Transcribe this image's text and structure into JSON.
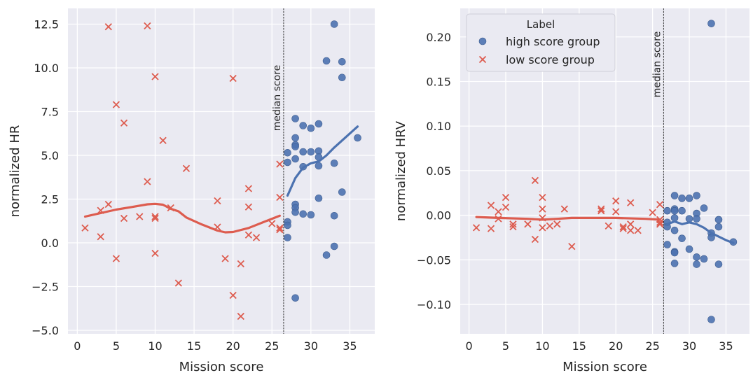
{
  "chart_data": [
    {
      "type": "scatter",
      "xlabel": "Mission score",
      "ylabel": "normalized HR",
      "xlim": [
        -1.2,
        38.2
      ],
      "ylim": [
        -5.2,
        13.4
      ],
      "xticks": [
        0,
        5,
        10,
        15,
        20,
        25,
        30,
        35
      ],
      "xtick_labels": [
        "0",
        "5",
        "10",
        "15",
        "20",
        "25",
        "30",
        "35"
      ],
      "yticks": [
        -5.0,
        -2.5,
        0.0,
        2.5,
        5.0,
        7.5,
        10.0,
        12.5
      ],
      "ytick_labels": [
        "−5.0",
        "−2.5",
        "0.0",
        "2.5",
        "5.0",
        "7.5",
        "10.0",
        "12.5"
      ],
      "grid": true,
      "median_line": {
        "x": 26.5,
        "label": "median score"
      },
      "series": [
        {
          "name": "high score group",
          "marker": "circle",
          "color": "#4c72b0",
          "points": [
            [
              27,
              5.15
            ],
            [
              27,
              4.6
            ],
            [
              27,
              1.2
            ],
            [
              27,
              1.0
            ],
            [
              27,
              0.3
            ],
            [
              28,
              7.1
            ],
            [
              28,
              6.0
            ],
            [
              28,
              5.6
            ],
            [
              28,
              5.5
            ],
            [
              28,
              4.8
            ],
            [
              28,
              2.2
            ],
            [
              28,
              2.0
            ],
            [
              28,
              1.75
            ],
            [
              28,
              -3.15
            ],
            [
              29,
              6.7
            ],
            [
              29,
              5.2
            ],
            [
              29,
              4.35
            ],
            [
              29,
              1.65
            ],
            [
              30,
              6.55
            ],
            [
              30,
              5.2
            ],
            [
              30,
              1.6
            ],
            [
              31,
              6.8
            ],
            [
              31,
              5.25
            ],
            [
              31,
              4.9
            ],
            [
              31,
              4.4
            ],
            [
              31,
              2.55
            ],
            [
              32,
              10.4
            ],
            [
              32,
              -0.7
            ],
            [
              33,
              12.5
            ],
            [
              33,
              4.55
            ],
            [
              33,
              1.55
            ],
            [
              33,
              -0.2
            ],
            [
              34,
              10.35
            ],
            [
              34,
              9.45
            ],
            [
              34,
              2.9
            ],
            [
              36,
              6.0
            ]
          ],
          "trend": [
            [
              27,
              2.7
            ],
            [
              28,
              3.7
            ],
            [
              29,
              4.3
            ],
            [
              30,
              4.55
            ],
            [
              31,
              4.65
            ],
            [
              32,
              5.0
            ],
            [
              33,
              5.45
            ],
            [
              34,
              5.85
            ],
            [
              35,
              6.25
            ],
            [
              36,
              6.65
            ]
          ]
        },
        {
          "name": "low score group",
          "marker": "x",
          "color": "#dd5c4f",
          "points": [
            [
              1,
              0.85
            ],
            [
              3,
              1.85
            ],
            [
              3,
              0.35
            ],
            [
              4,
              12.35
            ],
            [
              4,
              2.2
            ],
            [
              5,
              7.9
            ],
            [
              5,
              -0.9
            ],
            [
              6,
              6.85
            ],
            [
              6,
              1.4
            ],
            [
              8,
              1.5
            ],
            [
              9,
              12.4
            ],
            [
              9,
              3.5
            ],
            [
              10,
              9.5
            ],
            [
              10,
              1.5
            ],
            [
              10,
              1.4
            ],
            [
              10,
              -0.6
            ],
            [
              11,
              5.85
            ],
            [
              12,
              2.0
            ],
            [
              13,
              -2.3
            ],
            [
              14,
              4.25
            ],
            [
              18,
              2.4
            ],
            [
              18,
              0.9
            ],
            [
              19,
              -0.9
            ],
            [
              20,
              9.4
            ],
            [
              20,
              -3.0
            ],
            [
              21,
              -1.2
            ],
            [
              21,
              -4.2
            ],
            [
              22,
              3.1
            ],
            [
              22,
              2.05
            ],
            [
              22,
              0.45
            ],
            [
              23,
              0.3
            ],
            [
              25,
              1.1
            ],
            [
              26,
              4.5
            ],
            [
              26,
              2.6
            ],
            [
              26,
              0.85
            ],
            [
              26,
              0.75
            ]
          ],
          "trend": [
            [
              1,
              1.5
            ],
            [
              3,
              1.7
            ],
            [
              5,
              1.9
            ],
            [
              7,
              2.05
            ],
            [
              9,
              2.2
            ],
            [
              10,
              2.23
            ],
            [
              11,
              2.18
            ],
            [
              12,
              1.95
            ],
            [
              13,
              1.8
            ],
            [
              14,
              1.45
            ],
            [
              16,
              1.05
            ],
            [
              18,
              0.7
            ],
            [
              19,
              0.6
            ],
            [
              20,
              0.62
            ],
            [
              22,
              0.85
            ],
            [
              24,
              1.2
            ],
            [
              26,
              1.55
            ]
          ]
        }
      ]
    },
    {
      "type": "scatter",
      "xlabel": "Mission score",
      "ylabel": "normalized HRV",
      "xlim": [
        -1.2,
        38.2
      ],
      "ylim": [
        -0.133,
        0.232
      ],
      "xticks": [
        0,
        5,
        10,
        15,
        20,
        25,
        30,
        35
      ],
      "xtick_labels": [
        "0",
        "5",
        "10",
        "15",
        "20",
        "25",
        "30",
        "35"
      ],
      "yticks": [
        -0.1,
        -0.05,
        0.0,
        0.05,
        0.1,
        0.15,
        0.2
      ],
      "ytick_labels": [
        "−0.10",
        "−0.05",
        "0.00",
        "0.05",
        "0.10",
        "0.15",
        "0.20"
      ],
      "grid": true,
      "median_line": {
        "x": 26.5,
        "label": "median score"
      },
      "legend": {
        "title": "Label",
        "placement": "upper-left",
        "entries": [
          "high score group",
          "low score group"
        ]
      },
      "series": [
        {
          "name": "high score group",
          "marker": "circle",
          "color": "#4c72b0",
          "points": [
            [
              27,
              0.005
            ],
            [
              27,
              -0.008
            ],
            [
              27,
              -0.013
            ],
            [
              27,
              -0.033
            ],
            [
              28,
              0.022
            ],
            [
              28,
              0.007
            ],
            [
              28,
              0.005
            ],
            [
              28,
              -0.003
            ],
            [
              28,
              -0.017
            ],
            [
              28,
              -0.041
            ],
            [
              28,
              -0.042
            ],
            [
              28,
              -0.054
            ],
            [
              29,
              0.019
            ],
            [
              29,
              0.005
            ],
            [
              29,
              -0.026
            ],
            [
              30,
              0.019
            ],
            [
              30,
              -0.004
            ],
            [
              30,
              -0.038
            ],
            [
              31,
              0.022
            ],
            [
              31,
              0.002
            ],
            [
              31,
              -0.004
            ],
            [
              31,
              -0.047
            ],
            [
              31,
              -0.055
            ],
            [
              32,
              0.008
            ],
            [
              32,
              -0.049
            ],
            [
              33,
              0.215
            ],
            [
              33,
              -0.02
            ],
            [
              33,
              -0.025
            ],
            [
              33,
              -0.117
            ],
            [
              34,
              -0.005
            ],
            [
              34,
              -0.013
            ],
            [
              34,
              -0.055
            ],
            [
              36,
              -0.03
            ]
          ],
          "trend": [
            [
              27,
              -0.01
            ],
            [
              28,
              -0.007
            ],
            [
              29,
              -0.01
            ],
            [
              30,
              -0.008
            ],
            [
              31,
              -0.01
            ],
            [
              32,
              -0.014
            ],
            [
              33,
              -0.02
            ],
            [
              34,
              -0.024
            ],
            [
              35,
              -0.028
            ],
            [
              36,
              -0.031
            ]
          ]
        },
        {
          "name": "low score group",
          "marker": "x",
          "color": "#dd5c4f",
          "points": [
            [
              1,
              -0.014
            ],
            [
              3,
              0.011
            ],
            [
              3,
              -0.015
            ],
            [
              4,
              0.004
            ],
            [
              4,
              -0.004
            ],
            [
              5,
              0.02
            ],
            [
              5,
              0.009
            ],
            [
              6,
              -0.01
            ],
            [
              6,
              -0.013
            ],
            [
              8,
              -0.01
            ],
            [
              9,
              0.039
            ],
            [
              9,
              -0.027
            ],
            [
              10,
              0.02
            ],
            [
              10,
              0.007
            ],
            [
              10,
              -0.003
            ],
            [
              10,
              -0.014
            ],
            [
              11,
              -0.012
            ],
            [
              12,
              -0.01
            ],
            [
              13,
              0.007
            ],
            [
              14,
              -0.035
            ],
            [
              18,
              0.007
            ],
            [
              18,
              0.005
            ],
            [
              19,
              -0.012
            ],
            [
              20,
              0.016
            ],
            [
              20,
              0.004
            ],
            [
              21,
              -0.013
            ],
            [
              21,
              -0.015
            ],
            [
              22,
              0.014
            ],
            [
              22,
              -0.01
            ],
            [
              22,
              -0.017
            ],
            [
              23,
              -0.017
            ],
            [
              25,
              0.003
            ],
            [
              26,
              0.012
            ],
            [
              26,
              -0.005
            ],
            [
              26,
              -0.008
            ],
            [
              26,
              -0.01
            ]
          ],
          "trend": [
            [
              1,
              -0.002
            ],
            [
              4,
              -0.003
            ],
            [
              8,
              -0.004
            ],
            [
              10,
              -0.005
            ],
            [
              12,
              -0.004
            ],
            [
              14,
              -0.003
            ],
            [
              16,
              -0.003
            ],
            [
              20,
              -0.003
            ],
            [
              24,
              -0.004
            ],
            [
              26,
              -0.005
            ]
          ]
        }
      ]
    }
  ]
}
